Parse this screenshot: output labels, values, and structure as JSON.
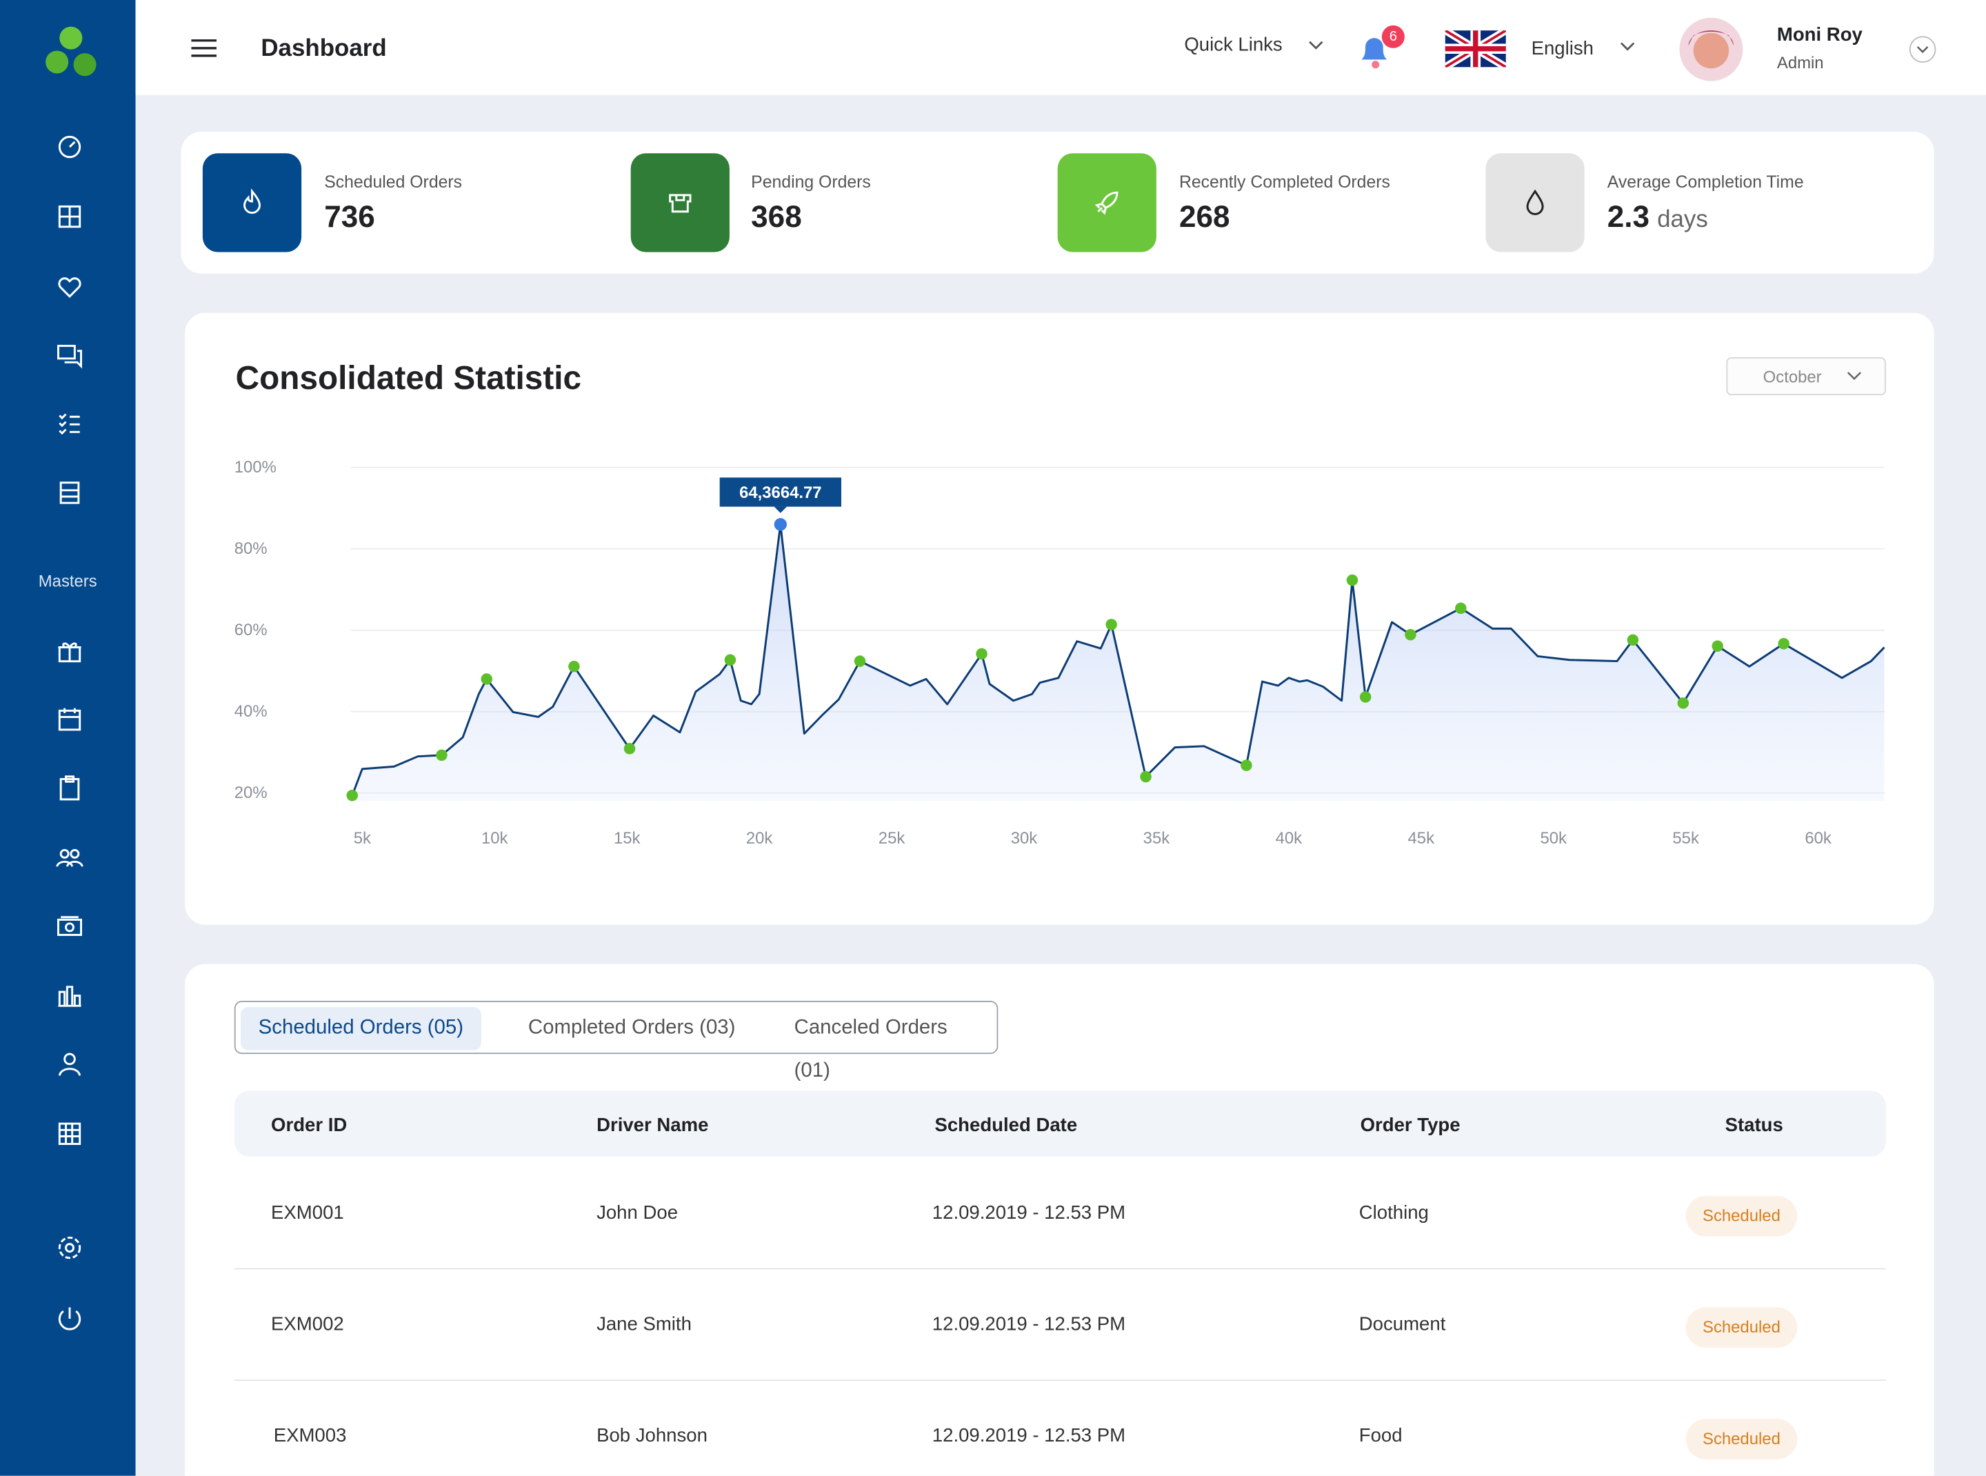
{
  "sidebar": {
    "section_label": "Masters"
  },
  "header": {
    "title": "Dashboard",
    "quick_links": "Quick Links",
    "notification_count": "6",
    "language": "English",
    "user": {
      "name": "Moni Roy",
      "role": "Admin"
    }
  },
  "stats": [
    {
      "label": "Scheduled Orders",
      "value": "736"
    },
    {
      "label": "Pending Orders",
      "value": "368"
    },
    {
      "label": "Recently Completed Orders",
      "value": "268"
    },
    {
      "label": "Average Completion Time",
      "value": "2.3",
      "unit": "days"
    }
  ],
  "chart_filter": {
    "selected": "October"
  },
  "chart_data": {
    "type": "line",
    "title": "Consolidated Statistic",
    "grid": true,
    "fill": true,
    "xlim": [
      4569,
      62512
    ],
    "ylim": [
      18,
      100
    ],
    "xticks": [
      {
        "value": 5000,
        "label": "5k"
      },
      {
        "value": 10000,
        "label": "10k"
      },
      {
        "value": 15000,
        "label": "15k"
      },
      {
        "value": 20000,
        "label": "20k"
      },
      {
        "value": 25000,
        "label": "25k"
      },
      {
        "value": 30000,
        "label": "30k"
      },
      {
        "value": 35000,
        "label": "35k"
      },
      {
        "value": 40000,
        "label": "40k"
      },
      {
        "value": 45000,
        "label": "45k"
      },
      {
        "value": 50000,
        "label": "50k"
      },
      {
        "value": 55000,
        "label": "55k"
      },
      {
        "value": 60000,
        "label": "60k"
      }
    ],
    "yticks": [
      {
        "value": 20,
        "label": "20%"
      },
      {
        "value": 40,
        "label": "40%"
      },
      {
        "value": 60,
        "label": "60%"
      },
      {
        "value": 80,
        "label": "80%"
      },
      {
        "value": 100,
        "label": "100%"
      }
    ],
    "series": [
      {
        "type": "line",
        "color": "#0c3c74",
        "x": [
          4620,
          5000,
          6200,
          7100,
          8000,
          8350,
          8800,
          9400,
          9700,
          10700,
          11650,
          12200,
          13000,
          15100,
          16000,
          17000,
          17600,
          18500,
          18900,
          19300,
          19700,
          20000,
          20800,
          21700,
          22400,
          23000,
          23800,
          25700,
          26300,
          27100,
          28400,
          28700,
          29600,
          30300,
          30600,
          31300,
          32000,
          32900,
          33300,
          34600,
          35700,
          36800,
          38400,
          39000,
          39600,
          40000,
          40400,
          40700,
          41300,
          42000,
          42400,
          42900,
          43900,
          44600,
          46500,
          47700,
          48400,
          49400,
          50600,
          52400,
          53000,
          54900,
          56200,
          57400,
          58700,
          60900,
          62000,
          62500
        ],
        "values": [
          19.4,
          25.9,
          26.5,
          29.0,
          29.3,
          31.2,
          33.7,
          44.3,
          48.0,
          39.9,
          38.7,
          41.2,
          51.1,
          30.9,
          39.0,
          34.9,
          44.9,
          49.2,
          52.7,
          42.7,
          41.8,
          44.3,
          86.0,
          34.6,
          39.3,
          43.0,
          52.4,
          46.4,
          48.0,
          41.8,
          54.2,
          46.8,
          42.7,
          44.3,
          47.1,
          48.3,
          57.3,
          55.5,
          61.4,
          24.0,
          31.2,
          31.5,
          26.8,
          47.4,
          46.4,
          48.3,
          47.4,
          47.7,
          46.1,
          42.7,
          72.3,
          43.6,
          62.0,
          58.9,
          65.4,
          60.4,
          60.4,
          53.6,
          52.7,
          52.4,
          57.6,
          42.1,
          56.1,
          51.1,
          56.7,
          48.3,
          52.4,
          55.8
        ]
      },
      {
        "type": "scatter",
        "color": "#5cbf2a",
        "x": [
          4620,
          8000,
          9700,
          13000,
          15100,
          18900,
          23800,
          28400,
          33300,
          34600,
          38400,
          42400,
          42900,
          44600,
          46500,
          53000,
          54900,
          56200,
          58700
        ],
        "values": [
          19.4,
          29.3,
          48.0,
          51.1,
          30.9,
          52.7,
          52.4,
          54.2,
          61.4,
          24.0,
          26.8,
          72.3,
          43.6,
          58.9,
          65.4,
          57.6,
          42.1,
          56.1,
          56.7
        ]
      }
    ],
    "annotations": [
      {
        "text": "64,3664.77",
        "x": 20800,
        "y": 86.0,
        "color": "#3a7be0",
        "box_color": "#0b4a8b"
      }
    ]
  },
  "orders": {
    "tabs": [
      "Scheduled Orders  (05)",
      "Completed Orders (03)",
      "Canceled Orders (01)"
    ],
    "columns": [
      "Order ID",
      "Driver Name",
      "Scheduled Date",
      "Order Type",
      "Status"
    ],
    "rows": [
      [
        "EXM001",
        "John Doe",
        "12.09.2019 - 12.53 PM",
        "Clothing",
        "Scheduled"
      ],
      [
        "EXM002",
        "Jane Smith",
        "12.09.2019 - 12.53 PM",
        "Document",
        "Scheduled"
      ],
      [
        "EXM003",
        "Bob Johnson",
        "12.09.2019 - 12.53 PM",
        "Food",
        "Scheduled"
      ]
    ]
  }
}
